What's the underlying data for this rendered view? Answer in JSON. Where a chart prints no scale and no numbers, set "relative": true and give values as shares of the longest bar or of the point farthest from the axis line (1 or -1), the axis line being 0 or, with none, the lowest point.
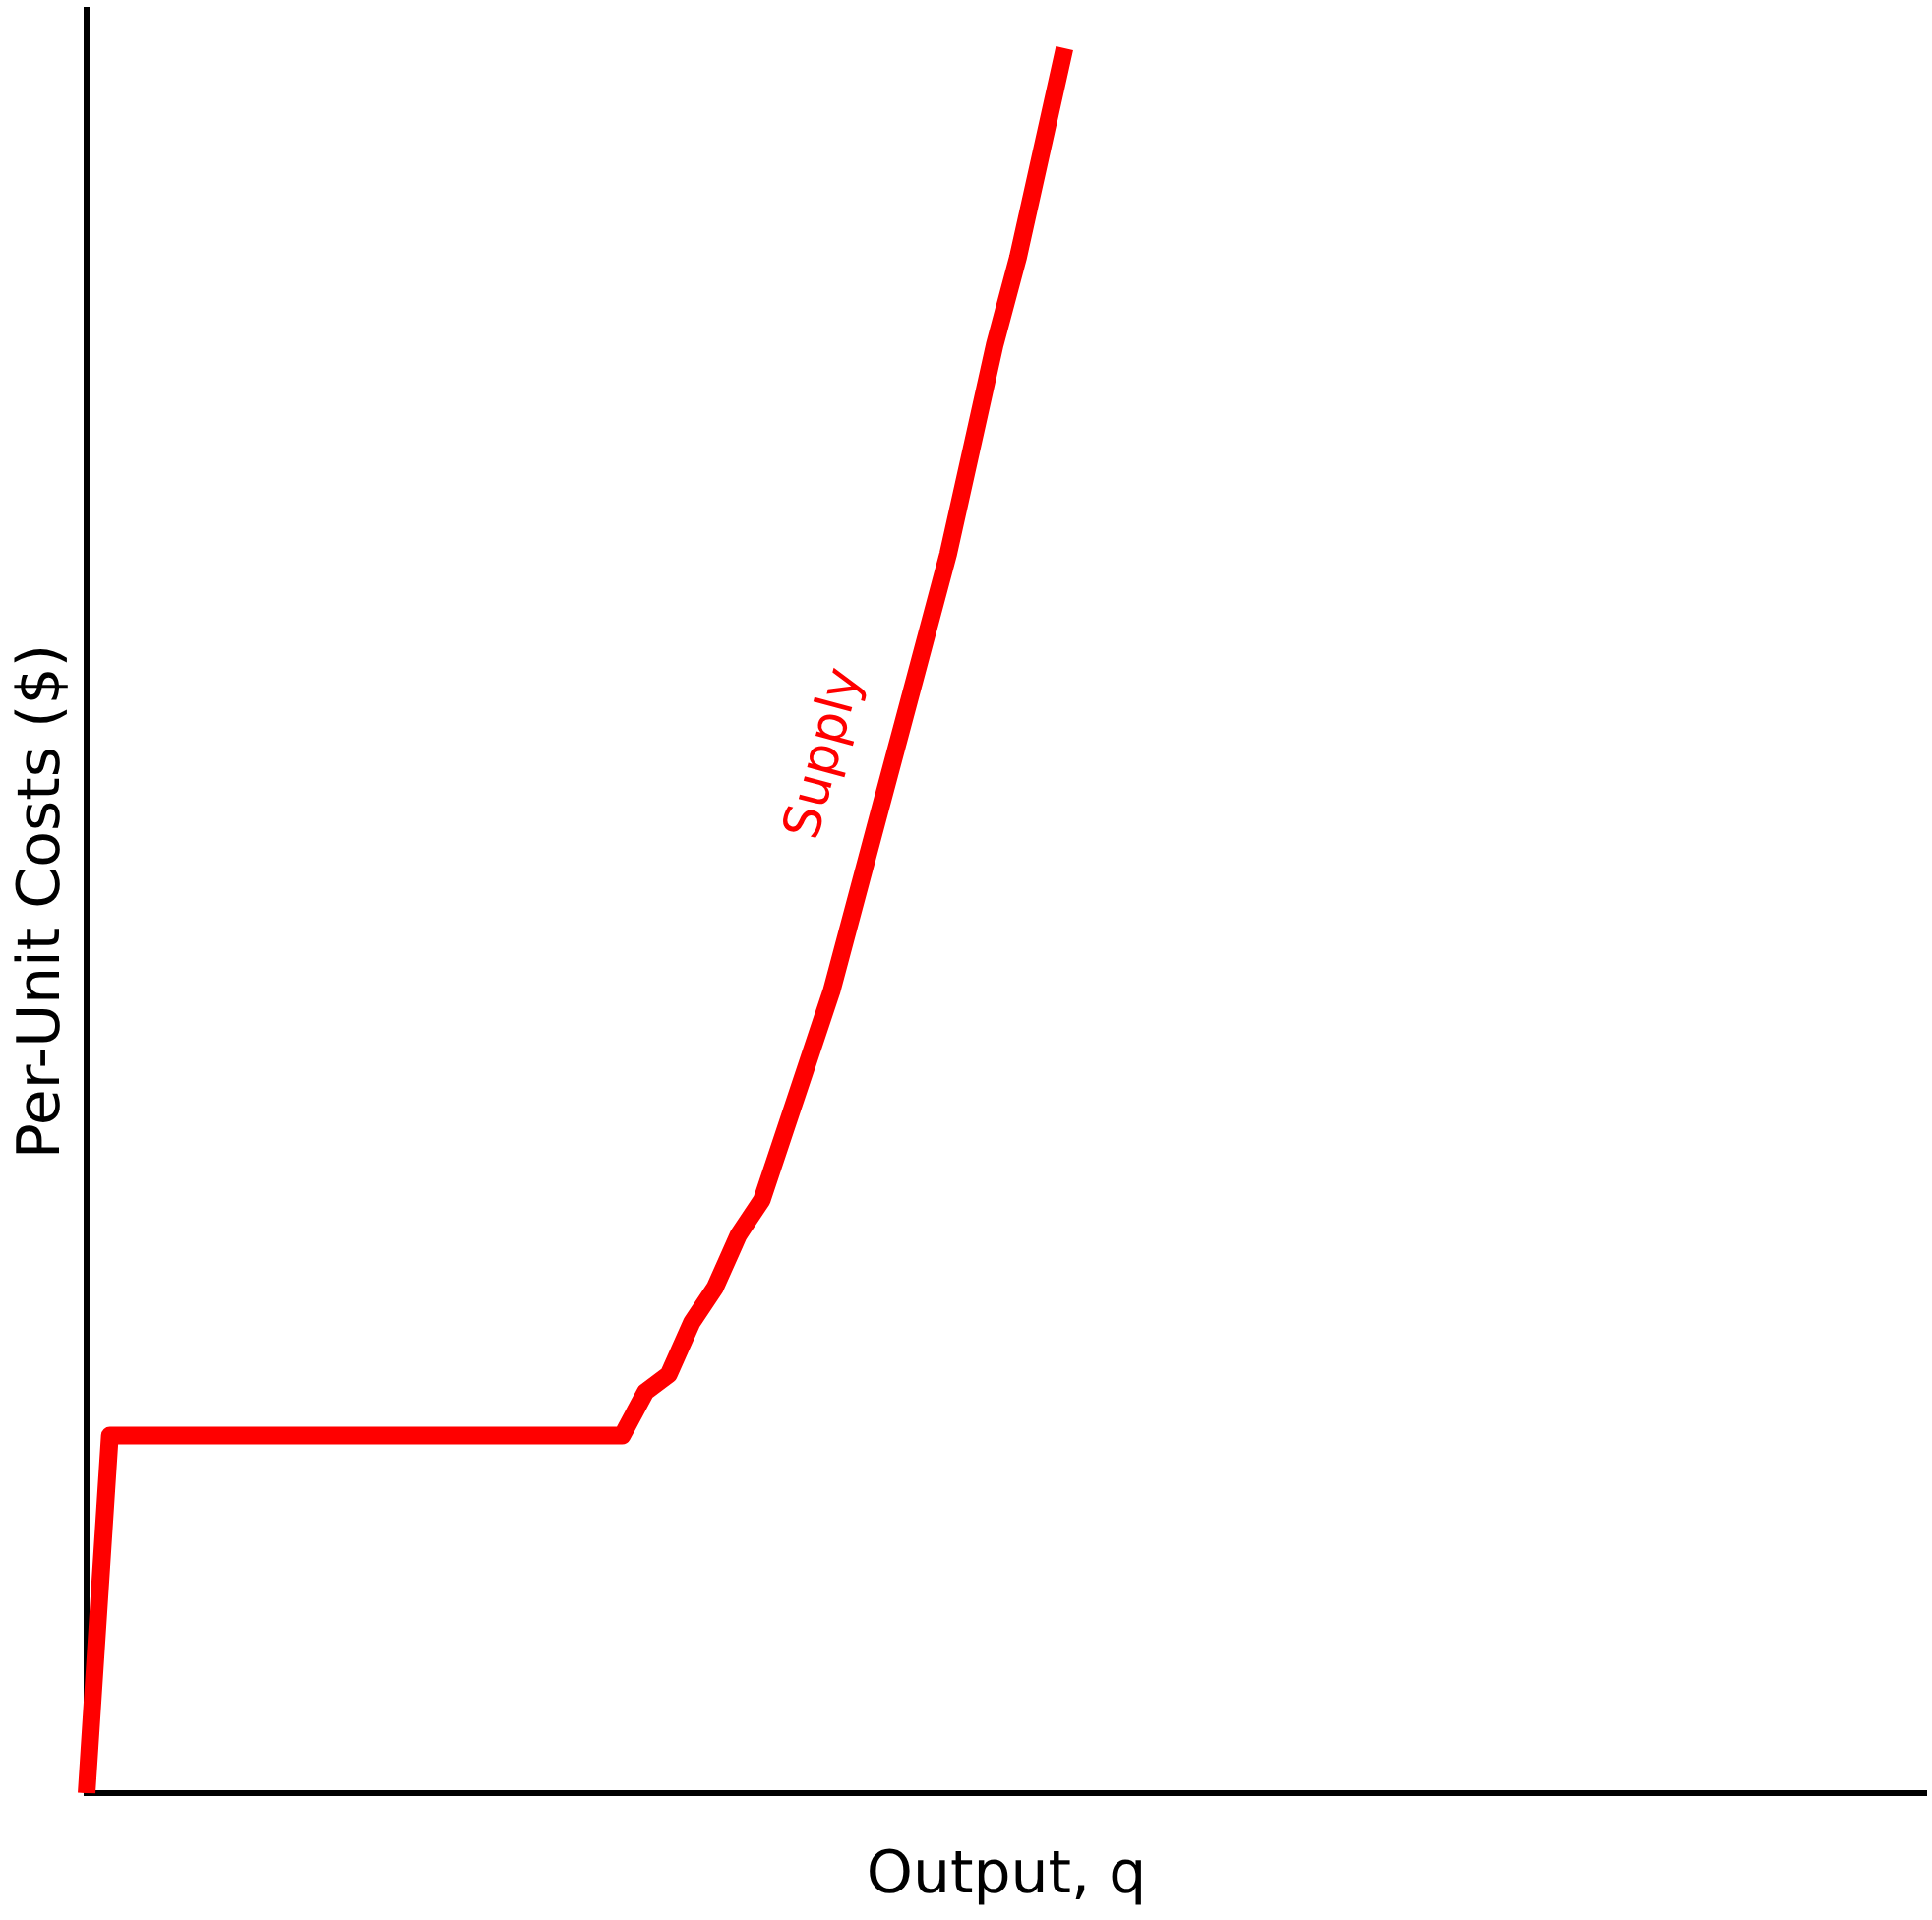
{
  "chart_data": {
    "type": "line",
    "relative": true,
    "xlabel": "Output, q",
    "ylabel": "Per-Unit Costs ($)",
    "grid": false,
    "legend": false,
    "marker": "none",
    "line_style": "solid",
    "categories": [
      null,
      null,
      null,
      null,
      null,
      null,
      null,
      null,
      null,
      null,
      null,
      null,
      null,
      null,
      null,
      null,
      null,
      null,
      null,
      null,
      null,
      null,
      null,
      null,
      null,
      null,
      null,
      null,
      null,
      null,
      null,
      null,
      null,
      null,
      null,
      null,
      null,
      null,
      null,
      null,
      null,
      null,
      null,
      null,
      null,
      null,
      null,
      null,
      null,
      null,
      null,
      null,
      null,
      null,
      null,
      null,
      null,
      null,
      null,
      null,
      null,
      null,
      null,
      null,
      null,
      null,
      null,
      null,
      null,
      null,
      null,
      null,
      null,
      null,
      null,
      null,
      null,
      null,
      null,
      null
    ],
    "series": [
      {
        "name": "Supply",
        "color": "#ff0000",
        "values": [
          0,
          0.205,
          0.205,
          0.205,
          0.205,
          0.205,
          0.205,
          0.205,
          0.205,
          0.205,
          0.205,
          0.205,
          0.205,
          0.205,
          0.205,
          0.205,
          0.205,
          0.205,
          0.205,
          0.205,
          0.205,
          0.205,
          0.205,
          0.205,
          0.23,
          0.24,
          0.27,
          0.29,
          0.32,
          0.34,
          0.38,
          0.42,
          0.46,
          0.51,
          0.56,
          0.61,
          0.66,
          0.71,
          0.77,
          0.83,
          0.88,
          0.94,
          1.0,
          null,
          null,
          null,
          null,
          null,
          null,
          null,
          null,
          null,
          null,
          null,
          null,
          null,
          null,
          null,
          null,
          null,
          null,
          null,
          null,
          null,
          null,
          null,
          null,
          null,
          null,
          null,
          null,
          null,
          null,
          null,
          null,
          null,
          null,
          null,
          null,
          null
        ]
      }
    ]
  }
}
